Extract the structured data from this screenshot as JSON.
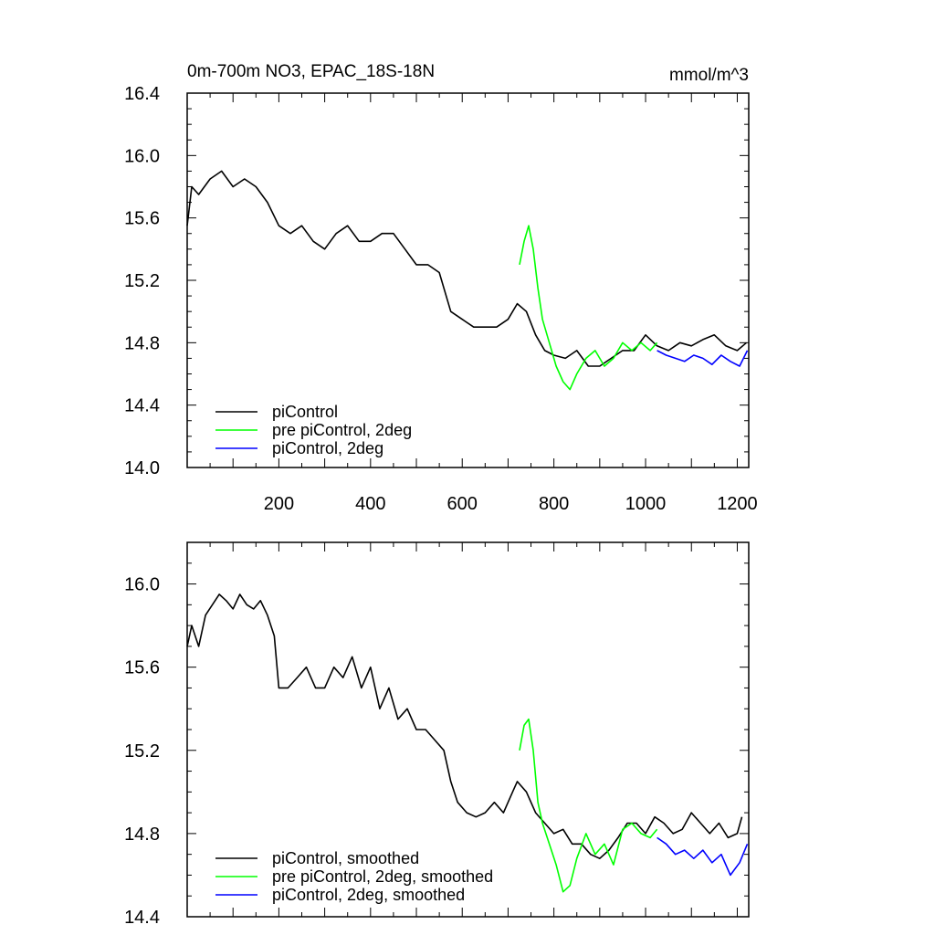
{
  "chart_data": [
    {
      "type": "line",
      "title": "0m-700m NO3, EPAC_18S-18N",
      "units": "mmol/m^3",
      "xlim": [
        0,
        1225
      ],
      "ylim": [
        14.0,
        16.4
      ],
      "xticks": [
        200,
        400,
        600,
        800,
        1000,
        1200
      ],
      "xtick_labels": [
        "200",
        "400",
        "600",
        "800",
        "1000",
        "1200"
      ],
      "yticks": [
        14.0,
        14.4,
        14.8,
        15.2,
        15.6,
        16.0,
        16.4
      ],
      "ytick_labels": [
        "14.0",
        "14.4",
        "14.8",
        "15.2",
        "15.6",
        "16.0",
        "16.4"
      ],
      "legend_position": "bottom-left",
      "series": [
        {
          "name": "piControl",
          "color": "#000000",
          "x": [
            0,
            10,
            25,
            50,
            75,
            100,
            125,
            150,
            175,
            200,
            225,
            250,
            275,
            300,
            325,
            350,
            375,
            400,
            425,
            450,
            475,
            500,
            525,
            550,
            575,
            600,
            625,
            650,
            675,
            700,
            720,
            740,
            760,
            780,
            800,
            825,
            850,
            875,
            900,
            925,
            950,
            975,
            1000,
            1025,
            1050,
            1075,
            1100,
            1125,
            1150,
            1175,
            1200,
            1220
          ],
          "y": [
            15.55,
            15.8,
            15.75,
            15.85,
            15.9,
            15.8,
            15.85,
            15.8,
            15.7,
            15.55,
            15.5,
            15.55,
            15.45,
            15.4,
            15.5,
            15.55,
            15.45,
            15.45,
            15.5,
            15.5,
            15.4,
            15.3,
            15.3,
            15.25,
            15.0,
            14.95,
            14.9,
            14.9,
            14.9,
            14.95,
            15.05,
            15.0,
            14.85,
            14.75,
            14.72,
            14.7,
            14.75,
            14.65,
            14.65,
            14.7,
            14.75,
            14.75,
            14.85,
            14.78,
            14.75,
            14.8,
            14.78,
            14.82,
            14.85,
            14.78,
            14.75,
            14.8
          ]
        },
        {
          "name": "pre piControl, 2deg",
          "color": "#00ff00",
          "x": [
            725,
            735,
            745,
            755,
            765,
            775,
            790,
            805,
            820,
            835,
            850,
            870,
            890,
            910,
            930,
            950,
            970,
            990,
            1010,
            1025
          ],
          "y": [
            15.3,
            15.45,
            15.55,
            15.4,
            15.15,
            14.95,
            14.8,
            14.65,
            14.55,
            14.5,
            14.6,
            14.7,
            14.75,
            14.65,
            14.7,
            14.8,
            14.75,
            14.8,
            14.75,
            14.8
          ]
        },
        {
          "name": "piControl, 2deg",
          "color": "#0000ff",
          "x": [
            1025,
            1045,
            1065,
            1085,
            1105,
            1125,
            1145,
            1165,
            1185,
            1205,
            1222
          ],
          "y": [
            14.75,
            14.72,
            14.7,
            14.68,
            14.72,
            14.7,
            14.66,
            14.72,
            14.68,
            14.65,
            14.75
          ]
        }
      ]
    },
    {
      "type": "line",
      "xlim": [
        0,
        1225
      ],
      "ylim": [
        14.4,
        16.2
      ],
      "yticks": [
        14.4,
        14.8,
        15.2,
        15.6,
        16.0
      ],
      "ytick_labels": [
        "14.4",
        "14.8",
        "15.2",
        "15.6",
        "16.0"
      ],
      "legend_position": "bottom-left",
      "series": [
        {
          "name": "piControl, smoothed",
          "color": "#000000",
          "x": [
            0,
            10,
            25,
            40,
            55,
            70,
            85,
            100,
            115,
            130,
            145,
            160,
            175,
            190,
            200,
            220,
            240,
            260,
            280,
            300,
            320,
            340,
            360,
            380,
            400,
            420,
            440,
            460,
            480,
            500,
            520,
            540,
            560,
            575,
            590,
            610,
            630,
            650,
            670,
            690,
            710,
            720,
            740,
            760,
            780,
            800,
            820,
            840,
            860,
            880,
            900,
            920,
            940,
            960,
            980,
            1000,
            1020,
            1040,
            1060,
            1080,
            1100,
            1120,
            1140,
            1160,
            1180,
            1200,
            1210
          ],
          "y": [
            15.7,
            15.8,
            15.7,
            15.85,
            15.9,
            15.95,
            15.92,
            15.88,
            15.95,
            15.9,
            15.88,
            15.92,
            15.85,
            15.75,
            15.5,
            15.5,
            15.55,
            15.6,
            15.5,
            15.5,
            15.6,
            15.55,
            15.65,
            15.5,
            15.6,
            15.4,
            15.5,
            15.35,
            15.4,
            15.3,
            15.3,
            15.25,
            15.2,
            15.05,
            14.95,
            14.9,
            14.88,
            14.9,
            14.95,
            14.9,
            15.0,
            15.05,
            15.0,
            14.9,
            14.85,
            14.8,
            14.82,
            14.75,
            14.75,
            14.7,
            14.68,
            14.72,
            14.78,
            14.85,
            14.85,
            14.8,
            14.88,
            14.85,
            14.8,
            14.82,
            14.9,
            14.85,
            14.8,
            14.85,
            14.78,
            14.8,
            14.88
          ]
        },
        {
          "name": "pre piControl, 2deg, smoothed",
          "color": "#00ff00",
          "x": [
            725,
            735,
            745,
            755,
            765,
            775,
            790,
            805,
            820,
            835,
            850,
            870,
            890,
            910,
            930,
            950,
            970,
            990,
            1010,
            1025
          ],
          "y": [
            15.2,
            15.32,
            15.35,
            15.2,
            14.95,
            14.85,
            14.75,
            14.65,
            14.52,
            14.55,
            14.68,
            14.8,
            14.7,
            14.75,
            14.65,
            14.82,
            14.85,
            14.8,
            14.78,
            14.82
          ]
        },
        {
          "name": "piControl, 2deg, smoothed",
          "color": "#0000ff",
          "x": [
            1025,
            1045,
            1065,
            1085,
            1105,
            1125,
            1145,
            1165,
            1185,
            1205,
            1222
          ],
          "y": [
            14.78,
            14.75,
            14.7,
            14.72,
            14.68,
            14.72,
            14.66,
            14.7,
            14.6,
            14.66,
            14.75
          ]
        }
      ]
    }
  ]
}
